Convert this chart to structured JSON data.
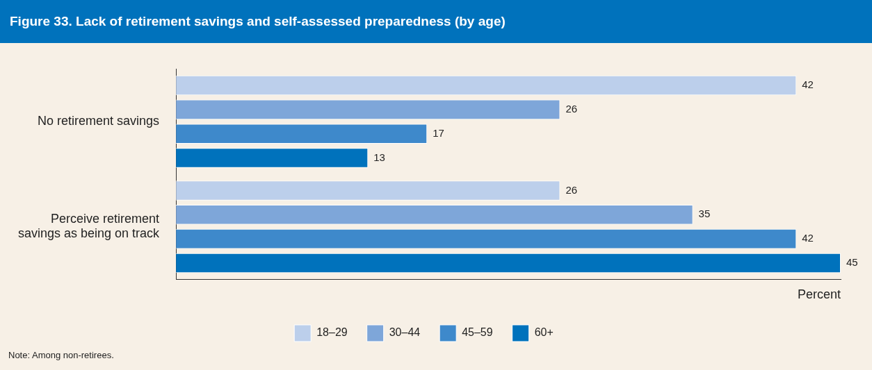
{
  "chart_data": {
    "type": "bar",
    "orientation": "horizontal",
    "title": "Figure 33. Lack of retirement savings and self-assessed preparedness (by age)",
    "categories": [
      "No retirement savings",
      "Perceive retirement savings as being on track"
    ],
    "series": [
      {
        "name": "18–29",
        "color": "#bccfeb",
        "values": [
          42,
          26
        ]
      },
      {
        "name": "30–44",
        "color": "#7ea6d9",
        "values": [
          26,
          35
        ]
      },
      {
        "name": "45–59",
        "color": "#3e89cb",
        "values": [
          17,
          42
        ]
      },
      {
        "name": "60+",
        "color": "#0072bc",
        "values": [
          13,
          45
        ]
      }
    ],
    "xlim": [
      0,
      45
    ],
    "xlabel": "Percent",
    "legend": "bottom",
    "data_labels": true,
    "annotations": [
      "Note: Among non-retirees."
    ]
  }
}
